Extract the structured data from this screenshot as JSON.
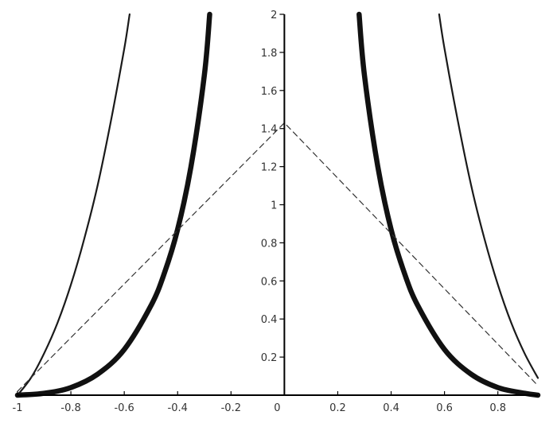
{
  "chart_data": {
    "type": "line",
    "title": "",
    "xlabel": "",
    "ylabel": "",
    "xlim": [
      -1,
      0.95
    ],
    "ylim": [
      0,
      2
    ],
    "grid": false,
    "legend": "none",
    "x_ticks": [
      {
        "value": -1,
        "label": "-1"
      },
      {
        "value": -0.8,
        "label": "-0.8"
      },
      {
        "value": -0.6,
        "label": "-0.6"
      },
      {
        "value": -0.4,
        "label": "-0.4"
      },
      {
        "value": -0.2,
        "label": "-0.2"
      },
      {
        "value": 0,
        "label": "0"
      },
      {
        "value": 0.2,
        "label": "0.2"
      },
      {
        "value": 0.4,
        "label": "0.4"
      },
      {
        "value": 0.6,
        "label": "0.6"
      },
      {
        "value": 0.8,
        "label": "0.8"
      }
    ],
    "y_ticks": [
      {
        "value": 0.2,
        "label": "0.2"
      },
      {
        "value": 0.4,
        "label": "0.4"
      },
      {
        "value": 0.6,
        "label": "0.6"
      },
      {
        "value": 0.8,
        "label": "0.8"
      },
      {
        "value": 1,
        "label": "1"
      },
      {
        "value": 1.2,
        "label": "1.2"
      },
      {
        "value": 1.4,
        "label": "1.4"
      },
      {
        "value": 1.6,
        "label": "1.6"
      },
      {
        "value": 1.8,
        "label": "1.8"
      },
      {
        "value": 2,
        "label": "2"
      }
    ],
    "series": [
      {
        "style": "thin-solid",
        "color": "#1a1a1a",
        "segments": [
          {
            "x": [
              -1,
              -0.95,
              -0.9,
              -0.85,
              -0.8,
              -0.75,
              -0.7,
              -0.65,
              -0.6,
              -0.58
            ],
            "y": [
              0,
              0.09,
              0.22,
              0.38,
              0.58,
              0.82,
              1.1,
              1.44,
              1.82,
              2.0
            ]
          },
          {
            "x": [
              0.58,
              0.6,
              0.65,
              0.7,
              0.75,
              0.8,
              0.85,
              0.9,
              0.95
            ],
            "y": [
              2.0,
              1.82,
              1.44,
              1.1,
              0.82,
              0.58,
              0.38,
              0.22,
              0.09
            ]
          }
        ]
      },
      {
        "style": "thick-solid",
        "color": "#111111",
        "segments": [
          {
            "x": [
              -1,
              -0.9,
              -0.8,
              -0.7,
              -0.6,
              -0.5,
              -0.45,
              -0.4,
              -0.35,
              -0.3,
              -0.28
            ],
            "y": [
              0,
              0.01,
              0.04,
              0.11,
              0.24,
              0.47,
              0.64,
              0.87,
              1.2,
              1.68,
              2.0
            ]
          },
          {
            "x": [
              0.28,
              0.3,
              0.35,
              0.4,
              0.45,
              0.5,
              0.6,
              0.7,
              0.8,
              0.9,
              0.95
            ],
            "y": [
              2.0,
              1.68,
              1.2,
              0.87,
              0.64,
              0.47,
              0.24,
              0.11,
              0.04,
              0.01,
              0.0
            ]
          }
        ]
      },
      {
        "style": "dashed",
        "color": "#333333",
        "segments": [
          {
            "x": [
              -1,
              0,
              0.95
            ],
            "y": [
              0.02,
              1.43,
              0.05
            ]
          }
        ]
      }
    ]
  }
}
